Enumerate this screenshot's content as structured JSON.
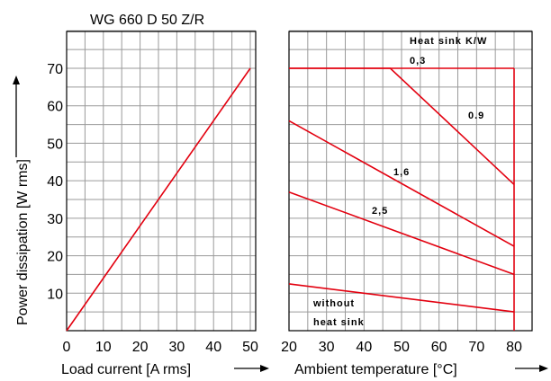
{
  "chart_data": {
    "title": "WG 660 D 50 Z/R",
    "ylabel": "Power dissipation [W rms]",
    "ylim": [
      0,
      85
    ],
    "y_ticks": [
      "10",
      "20",
      "30",
      "40",
      "50",
      "60",
      "70"
    ],
    "y_tick_values": [
      10,
      20,
      30,
      40,
      50,
      60,
      70
    ],
    "series_color": "#e3000f",
    "panels": [
      {
        "type": "line",
        "xlabel": "Load current [A rms]",
        "xlim": [
          0,
          50
        ],
        "x_ticks": [
          "0",
          "10",
          "20",
          "30",
          "40",
          "50"
        ],
        "x_tick_values": [
          0,
          10,
          20,
          30,
          40,
          50
        ],
        "series": [
          {
            "x": [
              0,
              50
            ],
            "y": [
              0,
              70
            ]
          }
        ]
      },
      {
        "type": "line",
        "xlabel": "Ambient temperature [°C]",
        "xlim": [
          20,
          80
        ],
        "x_ticks": [
          "20",
          "30",
          "40",
          "50",
          "60",
          "70",
          "80"
        ],
        "x_tick_values": [
          20,
          30,
          40,
          50,
          60,
          70,
          80
        ],
        "legend_title": "Heat sink K/W",
        "series": [
          {
            "name": "0,3",
            "x": [
              20,
              80
            ],
            "y": [
              70,
              70
            ]
          },
          {
            "name": "0.9",
            "x": [
              20,
              47,
              80
            ],
            "y": [
              70,
              70,
              39
            ]
          },
          {
            "name": "1,6",
            "x": [
              20,
              80
            ],
            "y": [
              56,
              22.5
            ]
          },
          {
            "name": "2,5",
            "x": [
              20,
              80
            ],
            "y": [
              37,
              15
            ]
          },
          {
            "name": "without heat sink",
            "x": [
              20,
              80
            ],
            "y": [
              12.5,
              5
            ]
          }
        ],
        "vertical_limit": {
          "x": 80,
          "y": [
            0,
            70
          ]
        }
      }
    ]
  }
}
